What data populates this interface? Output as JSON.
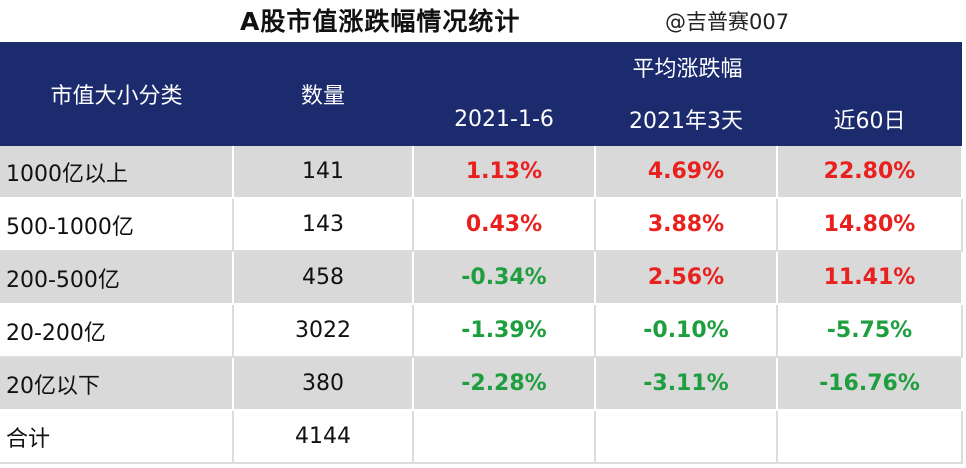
{
  "title": "A股市值涨跌幅情况统计",
  "watermark": "@吉普赛007",
  "header": {
    "category": "市值大小分类",
    "count": "数量",
    "avg_change": "平均涨跌幅",
    "periods": [
      "2021-1-6",
      "2021年3天",
      "近60日"
    ]
  },
  "rows": [
    {
      "category": "1000亿以上",
      "count": "141",
      "d1": "1.13%",
      "d3": "4.69%",
      "d60": "22.80%"
    },
    {
      "category": "500-1000亿",
      "count": "143",
      "d1": "0.43%",
      "d3": "3.88%",
      "d60": "14.80%"
    },
    {
      "category": "200-500亿",
      "count": "458",
      "d1": "-0.34%",
      "d3": "2.56%",
      "d60": "11.41%"
    },
    {
      "category": "20-200亿",
      "count": "3022",
      "d1": "-1.39%",
      "d3": "-0.10%",
      "d60": "-5.75%"
    },
    {
      "category": "20亿以下",
      "count": "380",
      "d1": "-2.28%",
      "d3": "-3.11%",
      "d60": "-16.76%"
    },
    {
      "category": "合计",
      "count": "4144",
      "d1": "",
      "d3": "",
      "d60": ""
    }
  ],
  "colors": {
    "header_bg": "#1c2a6e",
    "positive": "#e8201e",
    "negative": "#1e9e3e",
    "stripe": "#d9d9d9"
  }
}
